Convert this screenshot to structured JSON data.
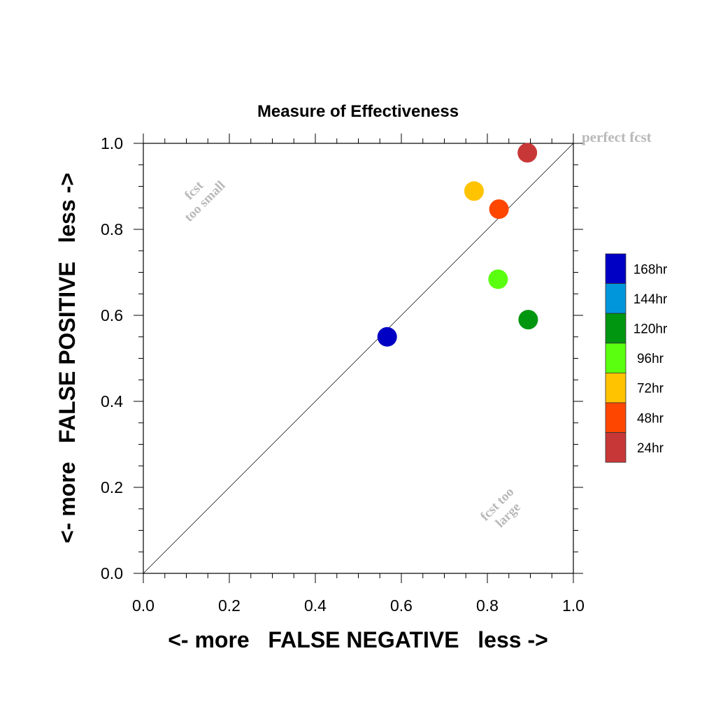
{
  "chart_data": {
    "type": "scatter",
    "title": "Measure of Effectiveness",
    "xlabel": "<- more   FALSE NEGATIVE   less ->",
    "ylabel": "<- more   FALSE POSITIVE   less ->",
    "xlim": [
      0.0,
      1.0
    ],
    "ylim": [
      0.0,
      1.0
    ],
    "x_ticks": [
      "0.0",
      "0.2",
      "0.4",
      "0.6",
      "0.8",
      "1.0"
    ],
    "y_ticks": [
      "0.0",
      "0.2",
      "0.4",
      "0.6",
      "0.8",
      "1.0"
    ],
    "grid": false,
    "reference_line": "diagonal",
    "legend_position": "right",
    "annotations": {
      "perfect": "perfect fcst",
      "too_small_line1": "fcst",
      "too_small_line2": "too small",
      "too_large_line1": "fcst too",
      "too_large_line2": "large"
    },
    "legend": [
      {
        "label": "168hr",
        "color": "#0000c4"
      },
      {
        "label": "144hr",
        "color": "#0096dc"
      },
      {
        "label": "120hr",
        "color": "#00960f"
      },
      {
        "label": "96hr",
        "color": "#5aff0f"
      },
      {
        "label": "72hr",
        "color": "#ffc300"
      },
      {
        "label": "48hr",
        "color": "#ff4600"
      },
      {
        "label": "24hr",
        "color": "#c83737"
      }
    ],
    "series": [
      {
        "name": "24hr",
        "x": 0.893,
        "y": 0.978,
        "color": "#c83737"
      },
      {
        "name": "48hr",
        "x": 0.827,
        "y": 0.847,
        "color": "#ff4600"
      },
      {
        "name": "72hr",
        "x": 0.769,
        "y": 0.889,
        "color": "#ffc300"
      },
      {
        "name": "96hr",
        "x": 0.825,
        "y": 0.684,
        "color": "#5aff0f"
      },
      {
        "name": "120hr",
        "x": 0.895,
        "y": 0.59,
        "color": "#00960f"
      },
      {
        "name": "168hr",
        "x": 0.567,
        "y": 0.55,
        "color": "#0000c4"
      }
    ]
  }
}
